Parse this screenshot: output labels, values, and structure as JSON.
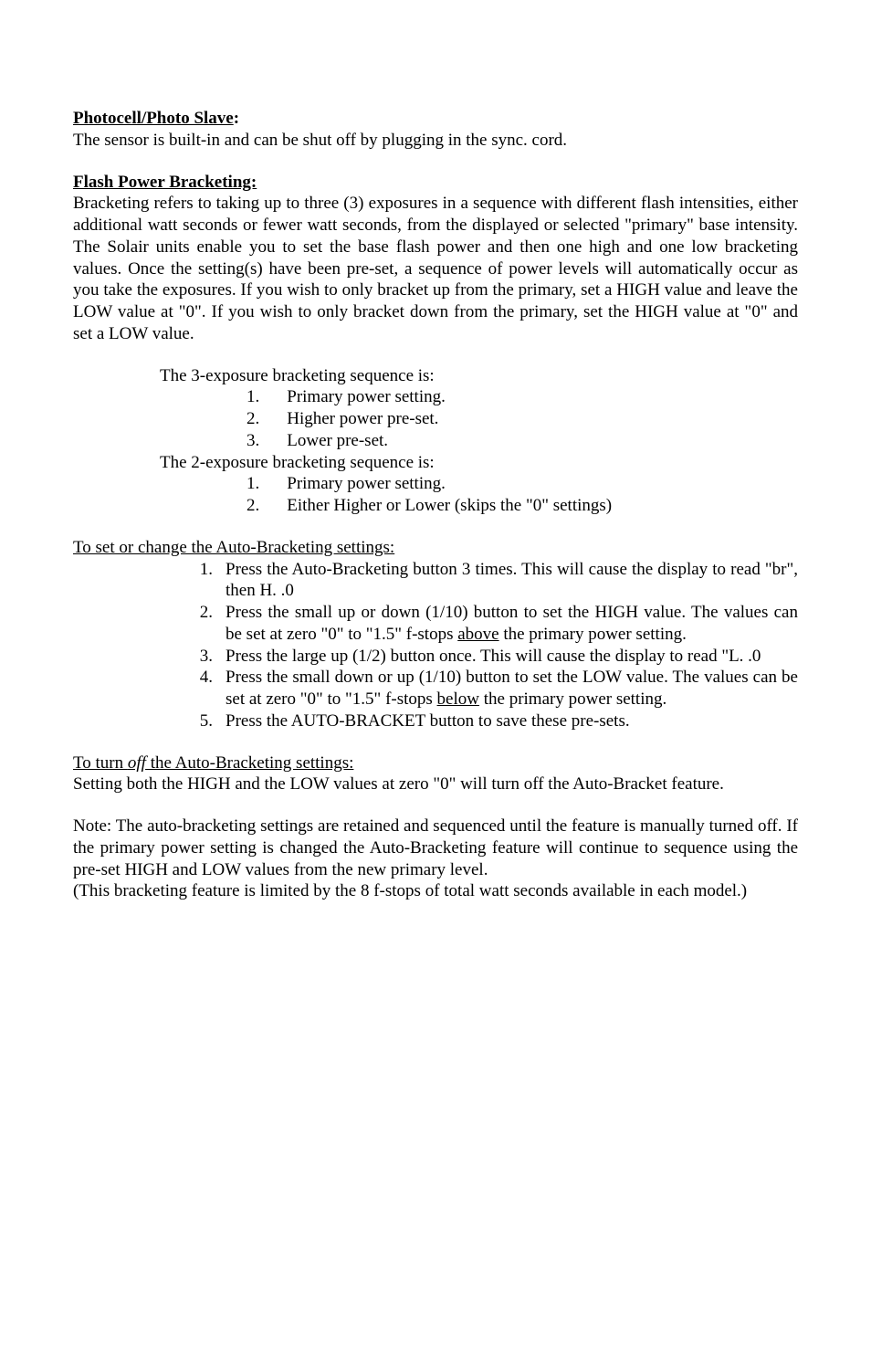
{
  "colors": {
    "background": "#ffffff",
    "text": "#000000"
  },
  "typography": {
    "font_family": "Times New Roman",
    "base_size_pt": 14,
    "line_height": 1.25
  },
  "section1": {
    "heading": "Photocell/Photo Slave",
    "colon": ":",
    "body": "The sensor is built-in and can be shut off by plugging in the sync. cord."
  },
  "section2": {
    "heading": "Flash Power Bracketing:",
    "body": "Bracketing refers to taking up to three (3) exposures in a sequence with different flash intensities, either additional watt seconds or fewer watt seconds, from the displayed or selected \"primary\" base intensity.  The Solair units enable you to set the base flash power and then one high and one low bracketing values.  Once the setting(s) have been pre-set, a sequence of power levels will automatically occur as you take the exposures.  If you wish to only bracket up from the primary, set a HIGH value and leave the LOW value at \"0\".  If you wish to only bracket down from the primary, set the HIGH value at \"0\" and set a LOW value."
  },
  "seq3": {
    "title": "The 3-exposure bracketing sequence is:",
    "items": {
      "n1": "1.",
      "t1": "Primary power setting.",
      "n2": "2.",
      "t2": "Higher power pre-set.",
      "n3": "3.",
      "t3": "Lower pre-set."
    }
  },
  "seq2": {
    "title": "The 2-exposure bracketing sequence is:",
    "items": {
      "n1": "1.",
      "t1": "Primary power setting.",
      "n2": "2.",
      "t2": "Either Higher or Lower (skips the \"0\" settings)"
    }
  },
  "setchange": {
    "heading": "To set or change the Auto-Bracketing settings:",
    "items": {
      "n1": "1.",
      "t1": "Press the Auto-Bracketing button 3 times.  This will cause the display to read \"br\", then H. .0",
      "n2": "2.",
      "t2a": "Press the small up or down (1/10) button to set the HIGH value.  The values can be set at zero \"0\" to \"1.5\" f-stops ",
      "t2u": "above",
      "t2b": " the primary power setting.",
      "n3": "3.",
      "t3": "Press the large up (1/2) button once. This will cause the display to read \"L. .0",
      "n4": "4.",
      "t4a": "Press the small down or up (1/10) button to set the LOW value.  The values can be set at zero \"0\" to \"1.5\" f-stops ",
      "t4u": "below",
      "t4b": " the primary power setting.",
      "n5": "5.",
      "t5": "Press the AUTO-BRACKET button to save these pre-sets."
    }
  },
  "turnoff": {
    "heading_a": "To turn ",
    "heading_i": "off",
    "heading_b": " the Auto-Bracketing settings:",
    "body": "Setting both the HIGH and the LOW values at zero \"0\" will turn off the Auto-Bracket feature."
  },
  "note": {
    "p1": "Note: The auto-bracketing settings are retained and sequenced until the feature is manually turned off.  If the primary power setting is changed the Auto-Bracketing feature will continue to sequence using the pre-set HIGH and LOW values from the new primary level.",
    "p2": "(This bracketing feature is limited by the 8 f-stops of total watt seconds available in each model.)"
  }
}
